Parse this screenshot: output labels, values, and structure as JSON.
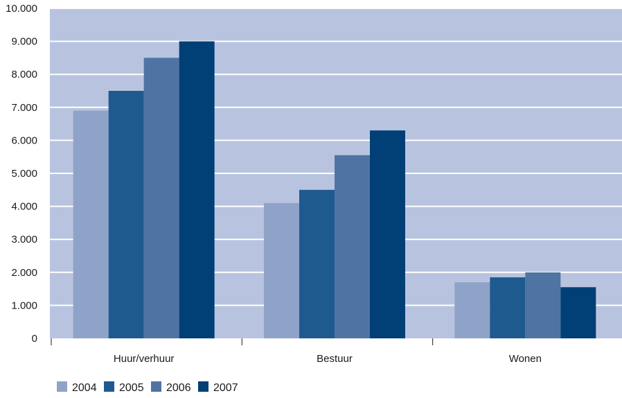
{
  "chart_data": {
    "type": "bar",
    "categories": [
      "Huur/verhuur",
      "Bestuur",
      "Wonen"
    ],
    "series": [
      {
        "name": "2004",
        "values": [
          6900,
          4100,
          1700
        ]
      },
      {
        "name": "2005",
        "values": [
          7500,
          4500,
          1850
        ]
      },
      {
        "name": "2006",
        "values": [
          8500,
          5550,
          2000
        ]
      },
      {
        "name": "2007",
        "values": [
          9000,
          6300,
          1550
        ]
      }
    ],
    "series_colors": [
      "#8fa3c8",
      "#1f5a8e",
      "#4f74a3",
      "#013f77"
    ],
    "plot_background": "#b8c4df",
    "gridline_color": "#ffffff",
    "ylim": [
      0,
      10000
    ],
    "yticks": [
      0,
      1000,
      2000,
      3000,
      4000,
      5000,
      6000,
      7000,
      8000,
      9000,
      10000
    ],
    "ytick_labels": [
      "0",
      "1.000",
      "2.000",
      "3.000",
      "4.000",
      "5.000",
      "6.000",
      "7.000",
      "8.000",
      "9.000",
      "10.000"
    ],
    "grid": true,
    "legend_position": "bottom-left",
    "title": "",
    "xlabel": "",
    "ylabel": ""
  }
}
